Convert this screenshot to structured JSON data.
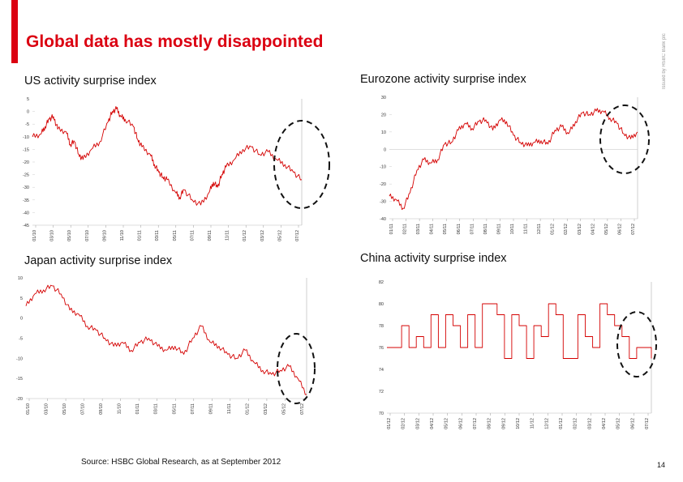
{
  "header": {
    "title": "Global data has mostly disappointed",
    "side_note": "Issued by HSBC Bank plc",
    "accent_color": "#db0011"
  },
  "footer": {
    "source": "Source: HSBC Global Research, as at September 2012",
    "page_number": "14"
  },
  "chart_data": [
    {
      "id": "us",
      "type": "line",
      "title": "US activity surprise index",
      "color": "#d40000",
      "y_ticks": [
        "5",
        "0",
        "-5",
        "-10",
        "-15",
        "-20",
        "-25",
        "-30",
        "-35",
        "-40",
        "-45"
      ],
      "ylim": [
        -45,
        5
      ],
      "x_ticks": [
        "01/10",
        "03/10",
        "05/10",
        "07/10",
        "09/10",
        "11/10",
        "01/11",
        "03/11",
        "05/11",
        "07/11",
        "09/11",
        "11/11",
        "01/12",
        "03/12",
        "05/12",
        "07/12"
      ],
      "xlim": [
        0,
        32
      ],
      "x": [
        0,
        1,
        1.5,
        2,
        2.5,
        3,
        4,
        4.5,
        5,
        5.5,
        6,
        7,
        8,
        9,
        9.5,
        10,
        10.5,
        11,
        12,
        12.5,
        13,
        14,
        14.5,
        15,
        15.5,
        16,
        17,
        17.5,
        18,
        19,
        20,
        21,
        21.5,
        22,
        22.5,
        23,
        24,
        25,
        26,
        27,
        28,
        29,
        30,
        31,
        32
      ],
      "y": [
        -10,
        -9,
        -6,
        -3,
        -2,
        -7,
        -8,
        -13,
        -12,
        -17,
        -19,
        -15,
        -12,
        -4,
        0,
        1,
        -2,
        -3,
        -6,
        -11,
        -14,
        -17,
        -21,
        -24,
        -26,
        -27,
        -32,
        -34,
        -31,
        -35,
        -37,
        -32,
        -28,
        -30,
        -25,
        -22,
        -19,
        -15,
        -14,
        -17,
        -16,
        -19,
        -21,
        -24,
        -27
      ]
    },
    {
      "id": "ez",
      "type": "line",
      "title": "Eurozone activity surprise index",
      "color": "#d40000",
      "y_ticks": [
        "30",
        "20",
        "10",
        "0",
        "-10",
        "-20",
        "-30",
        "-40"
      ],
      "ylim": [
        -40,
        30
      ],
      "x_ticks": [
        "01/11",
        "02/11",
        "03/11",
        "04/11",
        "05/11",
        "06/11",
        "07/11",
        "08/11",
        "09/11",
        "10/11",
        "11/11",
        "12/11",
        "01/12",
        "02/12",
        "03/12",
        "04/12",
        "05/12",
        "06/12",
        "07/12"
      ],
      "xlim": [
        0,
        36
      ],
      "x": [
        0,
        1,
        2,
        3,
        4,
        5,
        6,
        7,
        8,
        9,
        10,
        11,
        12,
        13,
        14,
        15,
        16,
        17,
        18,
        19,
        20,
        21,
        22,
        23,
        24,
        25,
        26,
        27,
        28,
        29,
        30,
        31,
        32,
        33,
        34,
        35,
        36
      ],
      "y": [
        -27,
        -29,
        -34,
        -25,
        -12,
        -6,
        -8,
        -6,
        3,
        4,
        11,
        15,
        12,
        16,
        17,
        11,
        17,
        16,
        8,
        4,
        2,
        4,
        5,
        3,
        11,
        13,
        9,
        16,
        21,
        20,
        22,
        22,
        18,
        15,
        9,
        6,
        10
      ]
    },
    {
      "id": "jp",
      "type": "line",
      "title": "Japan activity surprise index",
      "color": "#d40000",
      "y_ticks": [
        "10",
        "5",
        "0",
        "-5",
        "-10",
        "-15",
        "-20"
      ],
      "ylim": [
        -20,
        10
      ],
      "x_ticks": [
        "01/10",
        "03/10",
        "05/10",
        "07/10",
        "09/10",
        "11/10",
        "01/11",
        "03/11",
        "05/11",
        "07/11",
        "09/11",
        "11/11",
        "01/12",
        "03/12",
        "05/12",
        "07/12"
      ],
      "xlim": [
        0,
        32
      ],
      "x": [
        0,
        1,
        2,
        3,
        4,
        5,
        6,
        7,
        8,
        9,
        10,
        11,
        12,
        13,
        14,
        15,
        16,
        17,
        18,
        19,
        20,
        21,
        22,
        23,
        24,
        25,
        26,
        27,
        28,
        29,
        30,
        31,
        32
      ],
      "y": [
        3,
        6,
        7,
        8,
        6,
        2,
        1,
        -2,
        -3,
        -5,
        -7,
        -6,
        -8,
        -6,
        -5,
        -7,
        -8,
        -7,
        -9,
        -5,
        -2,
        -6,
        -7,
        -9,
        -10,
        -8,
        -11,
        -13,
        -14,
        -13,
        -12,
        -15,
        -19
      ]
    },
    {
      "id": "cn",
      "type": "line",
      "title": "China activity surprise index",
      "color": "#d40000",
      "y_ticks": [
        "82",
        "80",
        "78",
        "76",
        "74",
        "72",
        "70"
      ],
      "ylim": [
        70,
        82
      ],
      "x_ticks": [
        "01/12",
        "02/12",
        "03/12",
        "04/12",
        "05/12",
        "06/12",
        "07/12",
        "08/12",
        "09/12",
        "10/12",
        "11/12",
        "12/12",
        "01/12",
        "02/12",
        "03/12",
        "04/12",
        "05/12",
        "06/12",
        "07/12"
      ],
      "xlim": [
        0,
        36
      ],
      "x": [
        0,
        1,
        2,
        3,
        4,
        5,
        6,
        7,
        8,
        9,
        10,
        11,
        12,
        13,
        14,
        15,
        16,
        17,
        18,
        19,
        20,
        21,
        22,
        23,
        24,
        25,
        26,
        27,
        28,
        29,
        30,
        31,
        32,
        33,
        34,
        35,
        36
      ],
      "y": [
        76,
        76,
        78,
        76,
        77,
        76,
        79,
        76,
        79,
        78,
        76,
        79,
        76,
        80,
        80,
        79,
        75,
        79,
        78,
        75,
        78,
        77,
        80,
        79,
        75,
        75,
        79,
        77,
        76,
        80,
        79,
        78,
        77,
        75,
        76,
        76,
        75
      ]
    }
  ]
}
